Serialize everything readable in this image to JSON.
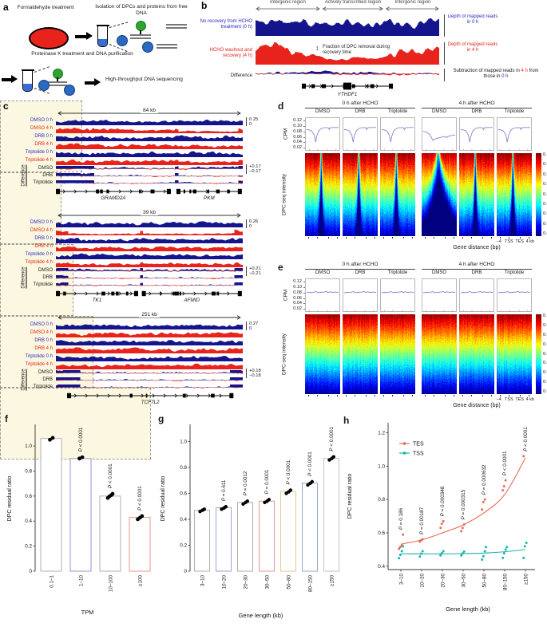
{
  "panels": {
    "a": {
      "letter": "a",
      "step1": "Formaldehyde treatment",
      "step2": "Isolation of DPCs and proteins from free DNA",
      "step3": "Proteinase K treatment and DNA purification",
      "step4": "High-throughput DNA sequencing"
    },
    "b": {
      "letter": "b",
      "regions": [
        "Intergenic region",
        "Actively transcribed region",
        "Intergenic region"
      ],
      "left_labels": [
        "No recovery from HCHO treatment (0 h)",
        "HCHO washout and recovery (4 h)",
        "Difference"
      ],
      "annotation": "Fraction of DPC removal during recovery time",
      "right_label_0h": "Depth of mapped reads in 0 h",
      "right_label_4h": "Depth of mapped reads in 4 h",
      "right_label_diff_parts": {
        "a": "Subtraction of mapped reads in ",
        "b": "4 h",
        "c": " from those in ",
        "d": "0 h"
      },
      "gene": "YTHDF1"
    },
    "c": {
      "letter": "c",
      "track_labels": [
        "DMSO 0 h",
        "DMSO 4 h",
        "DRB 0 h",
        "DRB 4 h",
        "Triptolide 0 h",
        "Triptolide 4 h"
      ],
      "diff_group_label": "Difference",
      "diff_track_labels": [
        "DMSO",
        "DRB",
        "Triptolide"
      ],
      "blocks": [
        {
          "span": "84 kb",
          "scale_max": "0.25",
          "scale_min": "0",
          "diff_max": "+0.17",
          "diff_min": "−0.17",
          "genes": [
            "GRAMD2A",
            "PKM"
          ]
        },
        {
          "span": "39 kb",
          "scale_max": "0.26",
          "scale_min": "0",
          "diff_max": "+0.21",
          "diff_min": "−0.21",
          "genes": [
            "TK1",
            "AFMID"
          ]
        },
        {
          "span": "251 kb",
          "scale_max": "0.27",
          "scale_min": "0",
          "diff_max": "+0.18",
          "diff_min": "−0.18",
          "genes": [
            "TCF7L2"
          ]
        }
      ]
    },
    "d": {
      "letter": "d",
      "group_headers": [
        "0 h after HCHO",
        "4 h after HCHO"
      ],
      "col_headers": [
        "DMSO",
        "DRB",
        "Triptolide",
        "DMSO",
        "DRB",
        "Triptolide"
      ],
      "cpm_label": "CPM",
      "cpm_ticks": [
        "0.12",
        "0.10",
        "0.08",
        "0.06",
        "0.04",
        "0.02"
      ],
      "heat_ylabel": "DPC-seq intensity",
      "colorbar_ticks": [
        "0.10",
        "0.09",
        "0.08",
        "0.07",
        "0.06",
        "0.05",
        "0.04",
        "0.03",
        "0.02"
      ],
      "x_tick_labels": [
        "−4",
        "TSS",
        "TES",
        "4 kb"
      ],
      "xlabel": "Gene distance (bp)"
    },
    "e": {
      "letter": "e",
      "group_headers": [
        "0 h after HCHO",
        "4 h after HCHO"
      ],
      "col_headers": [
        "DMSO",
        "DRB",
        "Triptolide",
        "DMSO",
        "DRB",
        "Triptolide"
      ],
      "cpm_label": "CPM",
      "cpm_ticks": [
        "0.12",
        "0.10",
        "0.08",
        "0.06",
        "0.04",
        "0.02"
      ],
      "heat_ylabel": "DPC-seq intensity",
      "colorbar_ticks": [
        "0.10",
        "0.09",
        "0.08",
        "0.07",
        "0.06",
        "0.05",
        "0.04",
        "0.03",
        "0.02"
      ],
      "x_tick_labels": [
        "−4",
        "TSS",
        "TES",
        "4 kb"
      ],
      "xlabel": "Gene distance (bp)"
    },
    "f": {
      "letter": "f"
    },
    "g": {
      "letter": "g"
    },
    "h": {
      "letter": "h"
    }
  },
  "chart_data": {
    "f": {
      "type": "bar",
      "xlabel": "TPM",
      "ylabel": "DPC residual ratio",
      "categories": [
        "0.1–1",
        "1–10",
        "10–100",
        "≥100"
      ],
      "values": [
        1.06,
        0.9,
        0.6,
        0.43
      ],
      "points": [
        [
          1.05,
          1.065
        ],
        [
          0.9,
          0.91
        ],
        [
          0.585,
          0.597,
          0.608,
          0.618
        ],
        [
          0.415,
          0.428,
          0.44
        ]
      ],
      "p_labels": [
        "",
        "P < 0.0001",
        "P < 0.0001",
        "P < 0.0001"
      ],
      "bar_edge_colors": [
        "#b2b2b2",
        "#9496d2",
        "#a9b6a4",
        "#e39a90"
      ],
      "yticks": [
        0,
        0.2,
        0.4,
        0.6,
        0.8,
        1.0
      ],
      "ylim": [
        0,
        1.16
      ],
      "grid": false
    },
    "g": {
      "type": "bar",
      "xlabel": "Gene length (kb)",
      "ylabel": "DPC residual ratio",
      "categories": [
        "3–10",
        "10–20",
        "20–30",
        "30–50",
        "50–80",
        "80–150",
        "≥150"
      ],
      "values": [
        0.47,
        0.49,
        0.53,
        0.54,
        0.615,
        0.68,
        0.87
      ],
      "points": [
        [
          0.46,
          0.47,
          0.478
        ],
        [
          0.478,
          0.487,
          0.497
        ],
        [
          0.518,
          0.53,
          0.54
        ],
        [
          0.53,
          0.54,
          0.552
        ],
        [
          0.6,
          0.612,
          0.625
        ],
        [
          0.665,
          0.678,
          0.69
        ],
        [
          0.858,
          0.87,
          0.882
        ]
      ],
      "p_labels": [
        "",
        "P = 0.611",
        "P = 0.0012",
        "P = 0.0001",
        "P < 0.0001",
        "P < 0.0001",
        "P < 0.0001"
      ],
      "bar_edge_colors": [
        "#b2b2b2",
        "#9aa2d8",
        "#a9b0a0",
        "#e39a90",
        "#e3c88a",
        "#9aa8c8",
        "#c2c2c2"
      ],
      "yticks": [
        0,
        0.2,
        0.4,
        0.6,
        0.8,
        1.0
      ],
      "ylim": [
        0,
        1.12
      ],
      "grid": false
    },
    "h": {
      "type": "scatter",
      "xlabel": "Gene length (kb)",
      "ylabel": "DPC residual ratio",
      "categories": [
        "3–10",
        "10–20",
        "20–30",
        "30–50",
        "50–80",
        "80–150",
        "≥150"
      ],
      "series": [
        {
          "name": "TES",
          "color": "#e96a55",
          "curve": [
            0.532,
            0.558,
            0.6,
            0.648,
            0.72,
            0.83,
            1.05
          ],
          "points": [
            [
              0.505,
              0.515,
              0.525,
              0.59
            ],
            [
              0.548,
              0.555,
              0.562
            ],
            [
              0.63,
              0.655,
              0.67
            ],
            [
              0.61,
              0.63,
              0.65
            ],
            [
              0.74,
              0.785,
              0.8
            ],
            [
              0.855,
              0.88,
              0.915
            ],
            [
              1.06
            ]
          ]
        },
        {
          "name": "TSS",
          "color": "#1ab3ab",
          "curve": [
            0.475,
            0.474,
            0.474,
            0.476,
            0.479,
            0.487,
            0.5
          ],
          "points": [
            [
              0.448,
              0.468,
              0.49,
              0.52
            ],
            [
              0.458,
              0.475,
              0.49
            ],
            [
              0.465,
              0.478,
              0.49
            ],
            [
              0.465,
              0.477,
              0.488
            ],
            [
              0.44,
              0.46,
              0.49,
              0.515
            ],
            [
              0.45,
              0.478,
              0.5,
              0.515
            ],
            [
              0.45,
              0.52,
              0.54
            ]
          ]
        }
      ],
      "p_labels": [
        "P = 0.186",
        "P = 0.00187",
        "P = 0.000348",
        "P = 0.000315",
        "P = 0.000632",
        "P < 0.0001",
        "P < 0.0001"
      ],
      "yticks": [
        0.4,
        0.6,
        0.8,
        1.0,
        1.2
      ],
      "ylim": [
        0.38,
        1.26
      ],
      "legend_position": "upper-left",
      "grid": false
    }
  },
  "profiles": {
    "normal": {
      "x": [
        0,
        0.08,
        0.16,
        0.24,
        0.28,
        0.32,
        0.38,
        0.46,
        0.55,
        0.62,
        0.68,
        0.71,
        0.74,
        0.85,
        1
      ],
      "y": [
        0.087,
        0.086,
        0.082,
        0.066,
        0.04,
        0.064,
        0.083,
        0.091,
        0.094,
        0.094,
        0.094,
        0.087,
        0.094,
        0.095,
        0.095
      ]
    },
    "dmso4": {
      "x": [
        0,
        0.1,
        0.2,
        0.27,
        0.31,
        0.36,
        0.45,
        0.55,
        0.63,
        0.7,
        0.73,
        0.8,
        0.9,
        1
      ],
      "y": [
        0.08,
        0.077,
        0.069,
        0.054,
        0.046,
        0.052,
        0.055,
        0.058,
        0.06,
        0.061,
        0.057,
        0.063,
        0.065,
        0.067
      ]
    },
    "flat": {
      "x": [
        0,
        0.08,
        0.18,
        0.3,
        0.34,
        0.44,
        0.55,
        0.63,
        0.68,
        0.72,
        0.82,
        0.92,
        1
      ],
      "y": [
        0.079,
        0.081,
        0.08,
        0.084,
        0.08,
        0.081,
        0.082,
        0.084,
        0.08,
        0.083,
        0.081,
        0.082,
        0.08
      ]
    }
  },
  "heatmap": {
    "d_patterns": [
      "peak",
      "peak",
      "peak",
      "wide",
      "peak",
      "peak"
    ],
    "d_profiles": [
      "normal",
      "normal",
      "normal",
      "dmso4",
      "normal",
      "normal"
    ],
    "e_patterns": [
      "uniform",
      "uniform",
      "uniform",
      "uniform",
      "uniform",
      "uniform"
    ],
    "e_profiles": [
      "flat",
      "flat",
      "flat",
      "flat",
      "flat",
      "flat"
    ]
  },
  "colors": {
    "track_blue": "#14148c",
    "track_red": "#e8231c",
    "label_blue": "#2a2ac2",
    "label_red": "#e0251c",
    "profile_line": "#8585cc",
    "cream": "#fcf7e0"
  }
}
